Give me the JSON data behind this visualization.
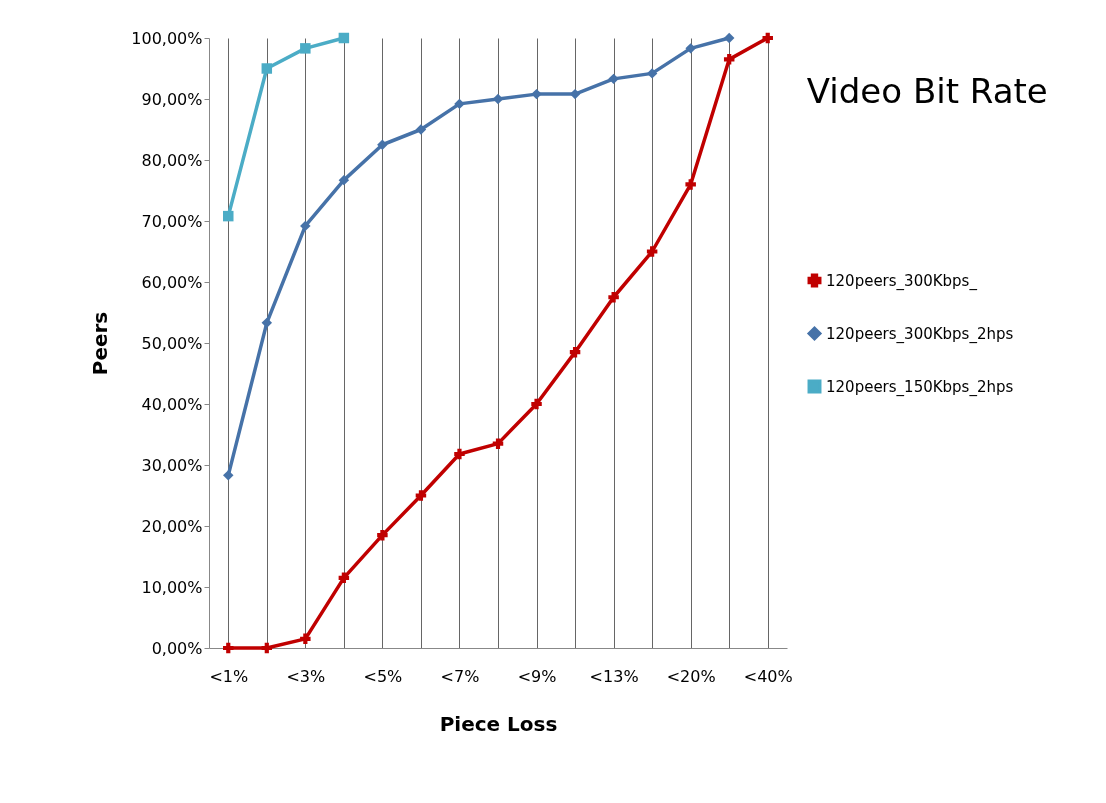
{
  "chart_data": {
    "type": "line",
    "title": "Video Bit Rate",
    "xlabel": "Piece Loss",
    "ylabel": "Peers",
    "categories": [
      "<1%",
      null,
      "<3%",
      null,
      "<5%",
      null,
      "<7%",
      null,
      "<9%",
      null,
      "<13%",
      null,
      "<20%",
      null,
      "<40%"
    ],
    "series": [
      {
        "name": "120peers_300Kbps_",
        "color": "#c00000",
        "marker": "cross",
        "values": [
          0,
          0,
          1.5,
          11.5,
          18.5,
          25,
          31.8,
          33.5,
          40,
          48.5,
          57.5,
          65,
          76,
          96.5,
          100
        ]
      },
      {
        "name": "120peers_300Kbps_2hps",
        "color": "#4672a8",
        "marker": "diamond",
        "values": [
          28.3,
          53.3,
          69.2,
          76.7,
          82.5,
          85,
          89.2,
          90,
          90.8,
          90.8,
          93.3,
          94.2,
          98.3,
          100,
          null
        ]
      },
      {
        "name": "120peers_150Kbps_2hps",
        "color": "#4bacc6",
        "marker": "square",
        "values": [
          70.8,
          95,
          98.3,
          100,
          null,
          null,
          null,
          null,
          null,
          null,
          null,
          null,
          null,
          null,
          null
        ]
      }
    ],
    "ylim": [
      0,
      100
    ],
    "yticks": [
      {
        "value": 0,
        "label": "0,00%"
      },
      {
        "value": 10,
        "label": "10,00%"
      },
      {
        "value": 20,
        "label": "20,00%"
      },
      {
        "value": 30,
        "label": "30,00%"
      },
      {
        "value": 40,
        "label": "40,00%"
      },
      {
        "value": 50,
        "label": "50,00%"
      },
      {
        "value": 60,
        "label": "60,00%"
      },
      {
        "value": 70,
        "label": "70,00%"
      },
      {
        "value": 80,
        "label": "80,00%"
      },
      {
        "value": 90,
        "label": "90,00%"
      },
      {
        "value": 100,
        "label": "100,00%"
      }
    ],
    "grid": "x",
    "legend": "right"
  }
}
